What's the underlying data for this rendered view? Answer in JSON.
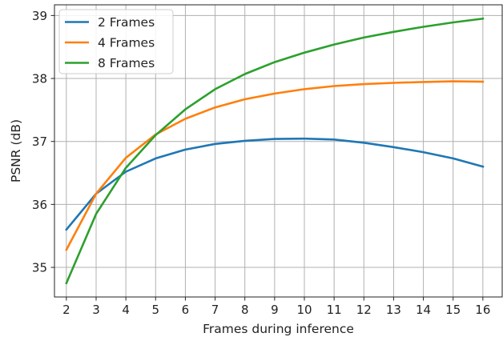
{
  "chart_data": {
    "type": "line",
    "title": "",
    "xlabel": "Frames during inference",
    "ylabel": "PSNR (dB)",
    "x": [
      2,
      3,
      4,
      5,
      6,
      7,
      8,
      9,
      10,
      11,
      12,
      13,
      14,
      15,
      16
    ],
    "x_ticks": [
      "2",
      "3",
      "4",
      "5",
      "6",
      "7",
      "8",
      "9",
      "10",
      "11",
      "12",
      "13",
      "14",
      "15",
      "16"
    ],
    "y_ticks": [
      "35",
      "36",
      "37",
      "38",
      "39"
    ],
    "xlim": [
      1.6,
      16.65
    ],
    "ylim": [
      34.53,
      39.17
    ],
    "grid": true,
    "legend_position": "top-left",
    "series": [
      {
        "name": "2 Frames",
        "color": "#1f77b4",
        "values": [
          35.6,
          36.17,
          36.52,
          36.73,
          36.87,
          36.96,
          37.01,
          37.04,
          37.045,
          37.03,
          36.98,
          36.91,
          36.83,
          36.73,
          36.6
        ]
      },
      {
        "name": "4 Frames",
        "color": "#ff7f0e",
        "values": [
          35.28,
          36.17,
          36.74,
          37.11,
          37.36,
          37.54,
          37.67,
          37.76,
          37.83,
          37.88,
          37.91,
          37.93,
          37.945,
          37.955,
          37.95
        ]
      },
      {
        "name": "8 Frames",
        "color": "#2ca02c",
        "values": [
          34.75,
          35.85,
          36.58,
          37.1,
          37.51,
          37.83,
          38.07,
          38.26,
          38.41,
          38.54,
          38.65,
          38.74,
          38.82,
          38.89,
          38.95
        ]
      }
    ]
  }
}
